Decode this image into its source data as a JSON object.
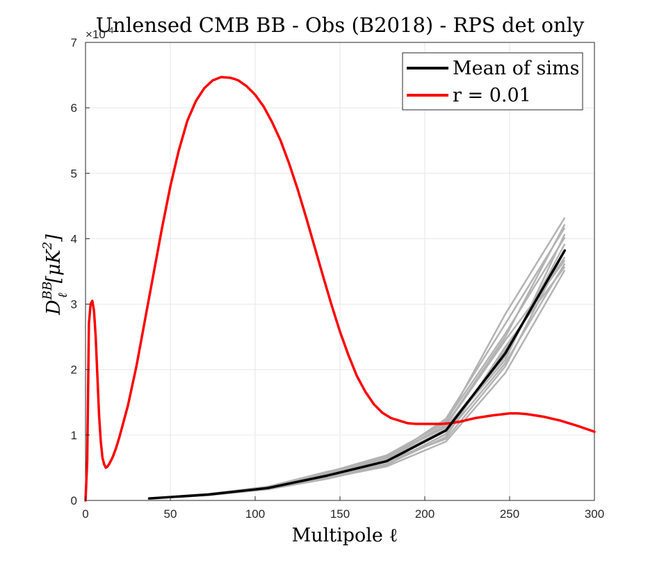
{
  "chart_data": {
    "type": "line",
    "title": "Unlensed CMB BB - Obs (B2018) - RPS det only",
    "xlabel": "Multipole ℓ",
    "ylabel": "D_ℓ^BB [μK²]",
    "ylabel_main": "D",
    "ylabel_sub": "ℓ",
    "ylabel_sup": "BB",
    "ylabel_units": "[μK",
    "ylabel_units_sup": "2",
    "ylabel_units_close": "]",
    "y_exponent_label": "×10",
    "y_exponent_power": "-4",
    "xlim": [
      0,
      300
    ],
    "ylim": [
      0,
      7
    ],
    "y_scale_factor": 0.0001,
    "xticks": [
      0,
      50,
      100,
      150,
      200,
      250,
      300
    ],
    "yticks": [
      0,
      1,
      2,
      3,
      4,
      5,
      6,
      7
    ],
    "grid": true,
    "legend_position": "top-right",
    "legend": [
      {
        "label": "Mean of sims",
        "color": "#000000"
      },
      {
        "label": "r = 0.01",
        "color": "#ff0000"
      }
    ],
    "series": [
      {
        "name": "r = 0.01",
        "color": "#ff0000",
        "x": [
          0,
          1,
          2,
          3,
          4,
          5,
          6,
          7,
          8,
          9,
          10,
          11,
          12,
          13,
          14,
          16,
          18,
          20,
          25,
          30,
          35,
          40,
          45,
          50,
          55,
          60,
          65,
          70,
          75,
          80,
          85,
          88,
          90,
          95,
          100,
          105,
          110,
          115,
          120,
          125,
          130,
          135,
          140,
          145,
          150,
          155,
          160,
          165,
          170,
          175,
          180,
          185,
          190,
          195,
          200,
          205,
          210,
          215,
          220,
          225,
          230,
          240,
          250,
          255,
          260,
          270,
          280,
          290,
          300
        ],
        "y": [
          0.0,
          0.6,
          2.7,
          3.0,
          3.05,
          2.9,
          2.5,
          1.9,
          1.3,
          0.9,
          0.65,
          0.55,
          0.5,
          0.52,
          0.56,
          0.66,
          0.8,
          0.97,
          1.45,
          2.05,
          2.75,
          3.45,
          4.15,
          4.8,
          5.35,
          5.8,
          6.1,
          6.3,
          6.42,
          6.47,
          6.46,
          6.44,
          6.42,
          6.33,
          6.2,
          6.02,
          5.78,
          5.5,
          5.15,
          4.76,
          4.33,
          3.88,
          3.43,
          2.99,
          2.58,
          2.22,
          1.9,
          1.66,
          1.47,
          1.34,
          1.26,
          1.22,
          1.18,
          1.17,
          1.17,
          1.17,
          1.17,
          1.18,
          1.2,
          1.23,
          1.26,
          1.3,
          1.33,
          1.33,
          1.32,
          1.28,
          1.22,
          1.14,
          1.05
        ]
      },
      {
        "name": "Mean of sims",
        "color": "#000000",
        "x": [
          37.5,
          72.5,
          107.5,
          142.5,
          177.5,
          212.5,
          247.5,
          282.5
        ],
        "y": [
          0.03,
          0.09,
          0.19,
          0.38,
          0.6,
          1.07,
          2.25,
          3.82
        ]
      }
    ],
    "sims": {
      "color": "#b3b3b3",
      "x": [
        37.5,
        72.5,
        107.5,
        142.5,
        177.5,
        212.5,
        247.5,
        282.5
      ],
      "offsets": [
        [
          0,
          -0.01,
          -0.02,
          -0.04,
          -0.08,
          -0.17,
          -0.3,
          -0.3
        ],
        [
          0,
          0.01,
          0.02,
          0.05,
          0.09,
          0.12,
          0.6,
          0.5
        ],
        [
          0,
          0,
          0.01,
          0.03,
          0.05,
          0.09,
          0.25,
          0.4
        ],
        [
          0,
          -0.01,
          -0.01,
          -0.02,
          -0.04,
          -0.06,
          -0.15,
          -0.2
        ],
        [
          0,
          0.01,
          0.01,
          0.04,
          0.07,
          0.05,
          -0.05,
          0.1
        ],
        [
          0,
          0,
          -0.01,
          -0.03,
          -0.05,
          -0.1,
          0.1,
          -0.25
        ],
        [
          0,
          0.01,
          0.02,
          0.06,
          0.03,
          0.18,
          0.45,
          0.35
        ],
        [
          0,
          -0.01,
          0,
          0.02,
          0.01,
          -0.13,
          -0.2,
          0.0
        ],
        [
          0,
          0,
          0.02,
          0.04,
          0.06,
          0.15,
          0.3,
          0.2
        ],
        [
          0,
          0,
          -0.02,
          -0.05,
          -0.06,
          -0.05,
          0.05,
          -0.1
        ],
        [
          0,
          0.01,
          0,
          0.01,
          0.02,
          0.02,
          -0.1,
          0.25
        ],
        [
          0,
          0,
          0.01,
          -0.01,
          0.03,
          0.08,
          0.2,
          -0.15
        ]
      ]
    }
  }
}
